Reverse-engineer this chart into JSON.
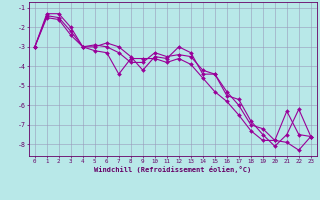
{
  "xlabel": "Windchill (Refroidissement éolien,°C)",
  "line_color": "#990099",
  "bg_color": "#b8e8e8",
  "grid_color": "#9999bb",
  "x_ticks": [
    0,
    1,
    2,
    3,
    4,
    5,
    6,
    7,
    8,
    9,
    10,
    11,
    12,
    13,
    14,
    15,
    16,
    17,
    18,
    19,
    20,
    21,
    22,
    23
  ],
  "y_ticks": [
    -8,
    -7,
    -6,
    -5,
    -4,
    -3,
    -2,
    -1
  ],
  "xlim": [
    -0.5,
    23.5
  ],
  "ylim": [
    -8.6,
    -0.7
  ],
  "line1_y": [
    -3.0,
    -1.4,
    -1.5,
    -2.2,
    -3.0,
    -3.0,
    -2.8,
    -3.0,
    -3.5,
    -4.2,
    -3.5,
    -3.6,
    -3.0,
    -3.3,
    -4.4,
    -4.4,
    -5.5,
    -5.7,
    -6.8,
    -7.5,
    -8.1,
    -7.5,
    -6.2,
    -7.6
  ],
  "line2_y": [
    -3.0,
    -1.5,
    -1.6,
    -2.4,
    -3.0,
    -3.2,
    -3.3,
    -4.4,
    -3.6,
    -3.6,
    -3.6,
    -3.8,
    -3.6,
    -3.9,
    -4.6,
    -5.3,
    -5.8,
    -6.5,
    -7.3,
    -7.8,
    -7.8,
    -7.9,
    -8.3,
    -7.6
  ],
  "line3_y": [
    -3.0,
    -1.3,
    -1.3,
    -2.0,
    -3.0,
    -2.9,
    -3.0,
    -3.3,
    -3.8,
    -3.8,
    -3.3,
    -3.5,
    -3.4,
    -3.5,
    -4.2,
    -4.4,
    -5.3,
    -6.0,
    -7.0,
    -7.2,
    -7.8,
    -6.3,
    -7.5,
    -7.6
  ]
}
